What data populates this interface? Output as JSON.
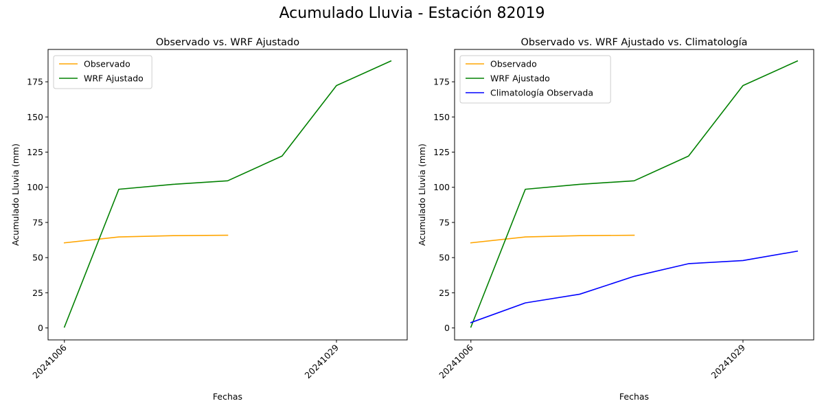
{
  "figure": {
    "suptitle": "Acumulado Lluvia - Estación 82019"
  },
  "colors": {
    "observado": "#ffa500",
    "wrf": "#008000",
    "climatologia": "#0000ff"
  },
  "chart_data": [
    {
      "type": "line",
      "title": "Observado vs. WRF Ajustado",
      "xlabel": "Fechas",
      "ylabel": "Acumulado Lluvia (mm)",
      "x_tick_labels": [
        {
          "label": "20241006",
          "index": 0
        },
        {
          "label": "20241029",
          "index": 5
        }
      ],
      "y_ticks": [
        0,
        25,
        50,
        75,
        100,
        125,
        150,
        175
      ],
      "xlim": [
        -0.3,
        6.3
      ],
      "ylim": [
        -8.5,
        198
      ],
      "legend": {
        "placement": "upper left",
        "entries": [
          "Observado",
          "WRF Ajustado"
        ]
      },
      "series": [
        {
          "name": "Observado",
          "color": "#ffa500",
          "x": [
            0,
            1,
            2,
            3
          ],
          "values": [
            60.5,
            64.7,
            65.6,
            65.9
          ]
        },
        {
          "name": "WRF Ajustado",
          "color": "#008000",
          "x": [
            0,
            1,
            2,
            3,
            4,
            5,
            6
          ],
          "values": [
            0.6,
            98.6,
            102.1,
            104.6,
            122.2,
            172.3,
            189.8
          ]
        }
      ]
    },
    {
      "type": "line",
      "title": "Observado vs. WRF Ajustado vs. Climatología",
      "xlabel": "Fechas",
      "ylabel": "Acumulado Lluvia (mm)",
      "x_tick_labels": [
        {
          "label": "20241006",
          "index": 0
        },
        {
          "label": "20241029",
          "index": 5
        }
      ],
      "y_ticks": [
        0,
        25,
        50,
        75,
        100,
        125,
        150,
        175
      ],
      "xlim": [
        -0.3,
        6.3
      ],
      "ylim": [
        -8.5,
        198
      ],
      "legend": {
        "placement": "upper left",
        "entries": [
          "Observado",
          "WRF Ajustado",
          "Climatología Observada"
        ]
      },
      "series": [
        {
          "name": "Observado",
          "color": "#ffa500",
          "x": [
            0,
            1,
            2,
            3
          ],
          "values": [
            60.5,
            64.7,
            65.6,
            65.9
          ]
        },
        {
          "name": "WRF Ajustado",
          "color": "#008000",
          "x": [
            0,
            1,
            2,
            3,
            4,
            5,
            6
          ],
          "values": [
            0.6,
            98.6,
            102.1,
            104.6,
            122.2,
            172.3,
            189.8
          ]
        },
        {
          "name": "Climatología Observada",
          "color": "#0000ff",
          "x": [
            0,
            1,
            2,
            3,
            4,
            5,
            6
          ],
          "values": [
            3.8,
            17.8,
            24.0,
            36.7,
            45.7,
            47.9,
            54.6
          ]
        }
      ]
    }
  ]
}
